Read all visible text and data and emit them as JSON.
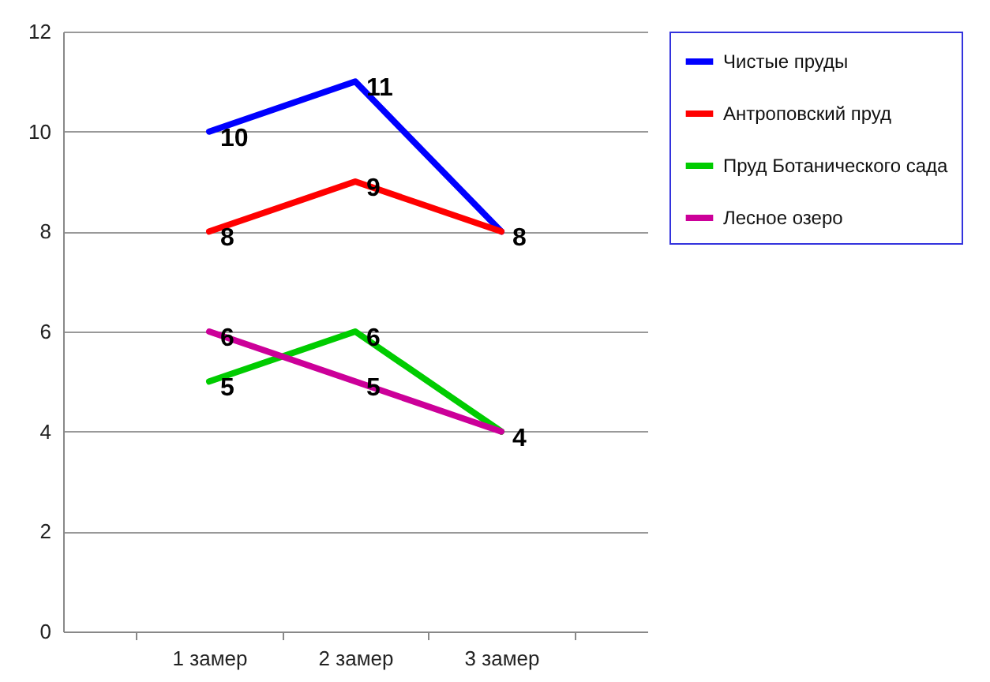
{
  "chart_data": {
    "type": "line",
    "categories": [
      "1 замер",
      "2 замер",
      "3 замер"
    ],
    "series": [
      {
        "name": "Чистые пруды",
        "color": "#0000ff",
        "values": [
          10,
          11,
          8
        ]
      },
      {
        "name": "Антроповский пруд",
        "color": "#ff0000",
        "values": [
          8,
          9,
          8
        ],
        "value_labels": [
          "8",
          "9",
          null
        ]
      },
      {
        "name": "Пруд Ботанического сада",
        "color": "#00cc00",
        "values": [
          5,
          6,
          4
        ]
      },
      {
        "name": "Лесное озеро",
        "color": "#cc0099",
        "values": [
          6,
          5,
          4
        ],
        "value_labels": [
          "6",
          "5",
          null
        ]
      }
    ],
    "ylim": [
      0,
      12
    ],
    "yticks": [
      0,
      2,
      4,
      6,
      8,
      10,
      12
    ],
    "grid": "y",
    "legend": "right",
    "marker": "none",
    "line_style": "solid",
    "data_labels": true
  }
}
